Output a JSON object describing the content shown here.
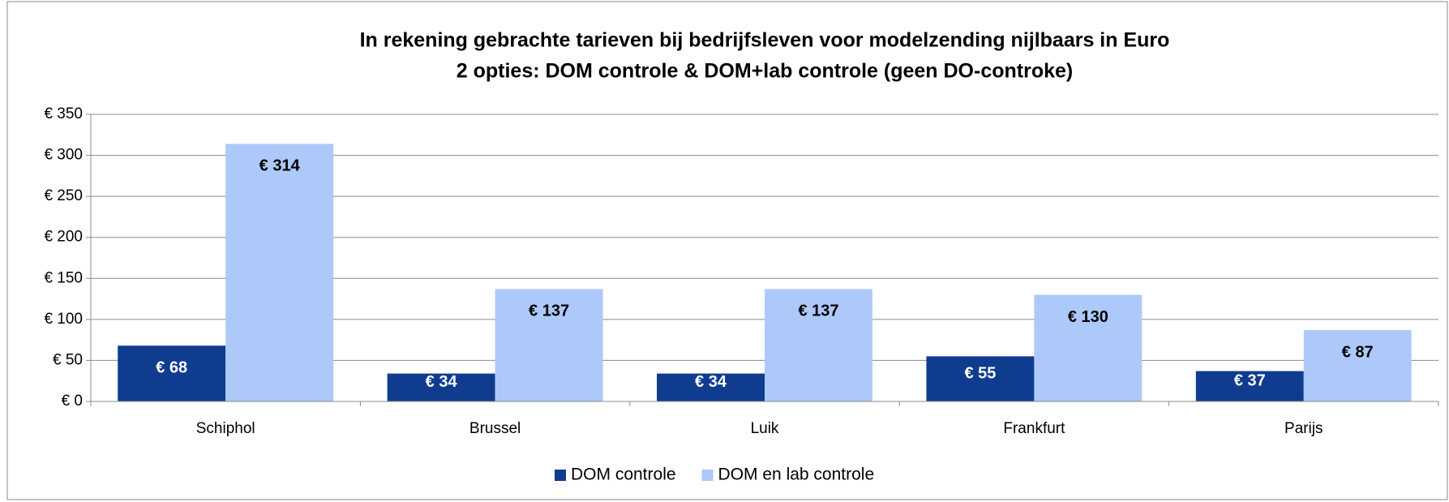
{
  "chart_data": {
    "type": "bar",
    "title": "In rekening gebrachte tarieven bij bedrijfsleven voor modelzending nijlbaars in Euro",
    "subtitle": "2 opties: DOM controle & DOM+lab controle (geen DO-controke)",
    "categories": [
      "Schiphol",
      "Brussel",
      "Luik",
      "Frankfurt",
      "Parijs"
    ],
    "series": [
      {
        "name": "DOM controle",
        "color": "#0f3c8f",
        "values": [
          68,
          34,
          34,
          55,
          37
        ],
        "value_labels": [
          "€ 68",
          "€ 34",
          "€ 34",
          "€ 55",
          "€ 37"
        ]
      },
      {
        "name": "DOM en lab controle",
        "color": "#adc9fa",
        "values": [
          314,
          137,
          137,
          130,
          87
        ],
        "value_labels": [
          "€ 314",
          "€ 137",
          "€ 137",
          "€ 130",
          "€ 87"
        ]
      }
    ],
    "ylim": [
      0,
      350
    ],
    "yticks": [
      {
        "value": 0,
        "label": "€ 0"
      },
      {
        "value": 50,
        "label": "€ 50"
      },
      {
        "value": 100,
        "label": "€ 100"
      },
      {
        "value": 150,
        "label": "€ 150"
      },
      {
        "value": 200,
        "label": "€ 200"
      },
      {
        "value": 250,
        "label": "€ 250"
      },
      {
        "value": 300,
        "label": "€ 300"
      },
      {
        "value": 350,
        "label": "€ 350"
      }
    ],
    "grid": true,
    "legend": "bottom"
  }
}
